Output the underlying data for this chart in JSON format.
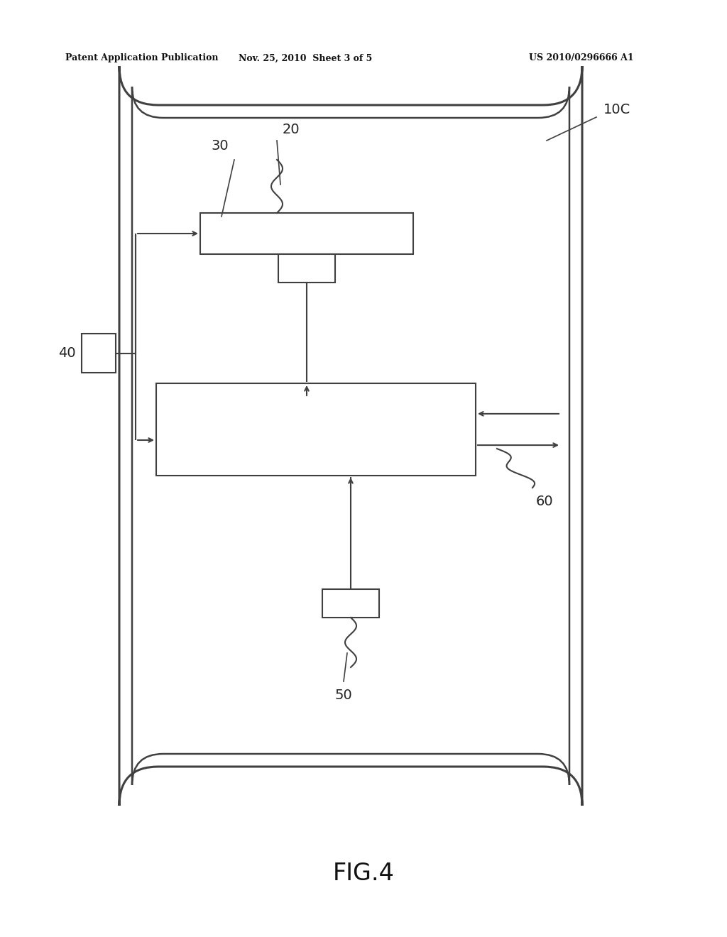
{
  "background_color": "#ffffff",
  "header_left": "Patent Application Publication",
  "header_center": "Nov. 25, 2010  Sheet 3 of 5",
  "header_right": "US 2010/0296666 A1",
  "figure_label": "FIG.4",
  "label_10C": "10C",
  "label_20": "20",
  "label_30": "30",
  "label_40": "40",
  "label_50": "50",
  "label_60": "60"
}
